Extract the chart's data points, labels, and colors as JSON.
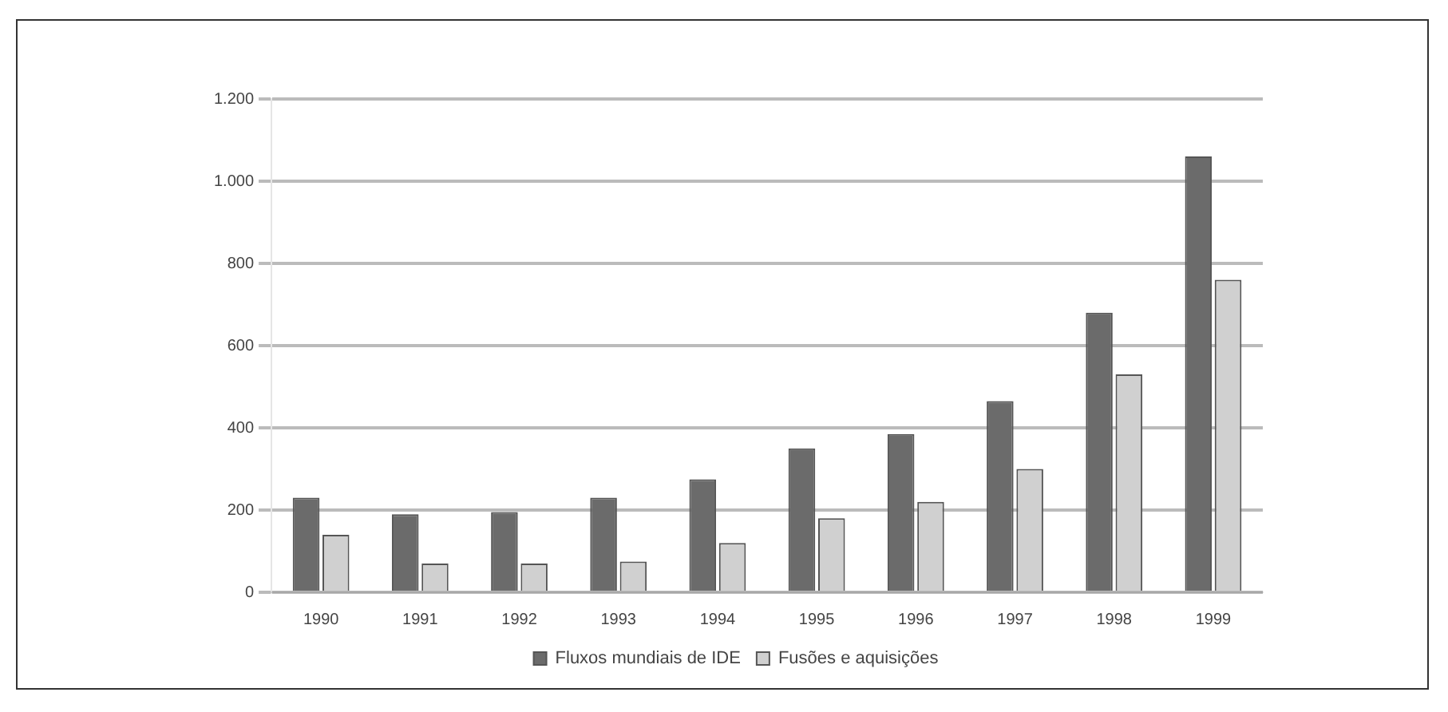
{
  "chart_data": {
    "type": "bar",
    "categories": [
      "1990",
      "1991",
      "1992",
      "1993",
      "1994",
      "1995",
      "1996",
      "1997",
      "1998",
      "1999"
    ],
    "series": [
      {
        "name": "Fluxos mundiais de IDE",
        "color": "#6b6b6b",
        "values": [
          230,
          190,
          195,
          230,
          275,
          350,
          385,
          465,
          680,
          1060
        ]
      },
      {
        "name": "Fusões e aquisições",
        "color": "#d0d0d0",
        "values": [
          140,
          70,
          70,
          75,
          120,
          180,
          220,
          300,
          530,
          760
        ]
      }
    ],
    "ylim": [
      0,
      1200
    ],
    "yticks": [
      0,
      200,
      400,
      600,
      800,
      {
        "value": 1000,
        "label": "1.000"
      },
      {
        "value": 1200,
        "label": "1.200"
      }
    ],
    "grid": "y",
    "legend": "bottom"
  }
}
